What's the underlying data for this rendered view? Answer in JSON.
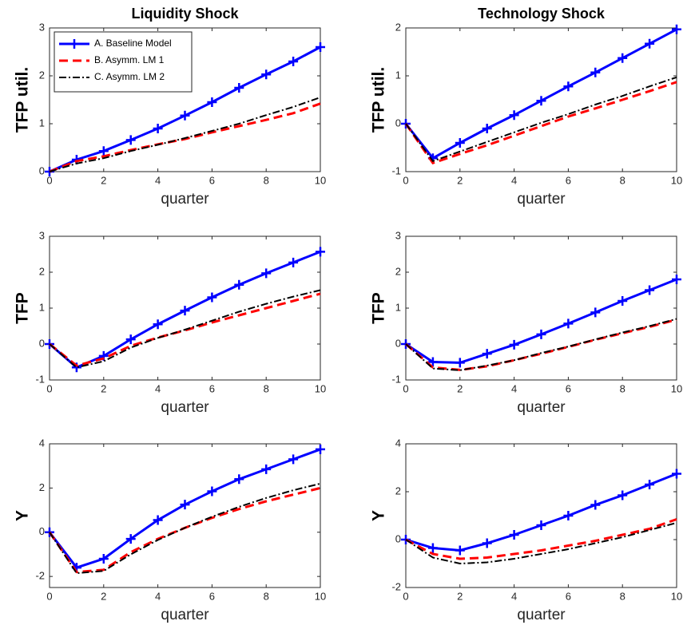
{
  "chart_data": [
    {
      "type": "line",
      "title": "Liquidity Shock",
      "xlabel": "quarter",
      "ylabel": "TFP util.",
      "x": [
        0,
        1,
        2,
        3,
        4,
        5,
        6,
        7,
        8,
        9,
        10
      ],
      "xlim": [
        0,
        10
      ],
      "xticks": [
        0,
        2,
        4,
        6,
        8,
        10
      ],
      "ylim": [
        0,
        3
      ],
      "yticks": [
        0,
        1,
        2,
        3
      ],
      "legend": "upper left",
      "series": [
        {
          "name": "A. Baseline Model",
          "color": "#0000ff",
          "line_style": "solid",
          "marker": "+",
          "values": [
            0,
            0.25,
            0.43,
            0.66,
            0.9,
            1.17,
            1.45,
            1.75,
            2.03,
            2.3,
            2.6
          ]
        },
        {
          "name": "B. Asymm. LM 1",
          "color": "#ff0000",
          "line_style": "dashed",
          "values": [
            0,
            0.22,
            0.32,
            0.45,
            0.57,
            0.68,
            0.82,
            0.95,
            1.08,
            1.22,
            1.42
          ]
        },
        {
          "name": "C. Asymm. LM 2",
          "color": "#000000",
          "line_style": "dashdot",
          "values": [
            0,
            0.17,
            0.28,
            0.43,
            0.56,
            0.7,
            0.85,
            1.0,
            1.18,
            1.35,
            1.55
          ]
        }
      ]
    },
    {
      "type": "line",
      "title": "Technology Shock",
      "xlabel": "quarter",
      "ylabel": "TFP util.",
      "x": [
        0,
        1,
        2,
        3,
        4,
        5,
        6,
        7,
        8,
        9,
        10
      ],
      "xlim": [
        0,
        10
      ],
      "xticks": [
        0,
        2,
        4,
        6,
        8,
        10
      ],
      "ylim": [
        -1,
        2
      ],
      "yticks": [
        -1,
        0,
        1,
        2
      ],
      "series": [
        {
          "color": "#0000ff",
          "line_style": "solid",
          "marker": "+",
          "values": [
            0,
            -0.72,
            -0.4,
            -0.1,
            0.18,
            0.48,
            0.78,
            1.07,
            1.37,
            1.67,
            1.97
          ]
        },
        {
          "color": "#ff0000",
          "line_style": "dashed",
          "values": [
            0,
            -0.82,
            -0.63,
            -0.45,
            -0.25,
            -0.05,
            0.15,
            0.32,
            0.5,
            0.68,
            0.87
          ]
        },
        {
          "color": "#000000",
          "line_style": "dashdot",
          "values": [
            0,
            -0.78,
            -0.58,
            -0.38,
            -0.18,
            0.02,
            0.2,
            0.4,
            0.58,
            0.78,
            0.97
          ]
        }
      ]
    },
    {
      "type": "line",
      "xlabel": "quarter",
      "ylabel": "TFP",
      "x": [
        0,
        1,
        2,
        3,
        4,
        5,
        6,
        7,
        8,
        9,
        10
      ],
      "xlim": [
        0,
        10
      ],
      "xticks": [
        0,
        2,
        4,
        6,
        8,
        10
      ],
      "ylim": [
        -1,
        3
      ],
      "yticks": [
        -1,
        0,
        1,
        2,
        3
      ],
      "series": [
        {
          "color": "#0000ff",
          "line_style": "solid",
          "marker": "+",
          "values": [
            0,
            -0.65,
            -0.33,
            0.13,
            0.55,
            0.93,
            1.3,
            1.65,
            1.97,
            2.27,
            2.57
          ]
        },
        {
          "color": "#ff0000",
          "line_style": "dashed",
          "values": [
            0,
            -0.6,
            -0.4,
            -0.05,
            0.18,
            0.38,
            0.6,
            0.8,
            1.0,
            1.2,
            1.4
          ]
        },
        {
          "color": "#000000",
          "line_style": "dashdot",
          "values": [
            0,
            -0.65,
            -0.48,
            -0.1,
            0.17,
            0.4,
            0.65,
            0.9,
            1.12,
            1.32,
            1.5
          ]
        }
      ]
    },
    {
      "type": "line",
      "xlabel": "quarter",
      "ylabel": "TFP",
      "x": [
        0,
        1,
        2,
        3,
        4,
        5,
        6,
        7,
        8,
        9,
        10
      ],
      "xlim": [
        0,
        10
      ],
      "xticks": [
        0,
        2,
        4,
        6,
        8,
        10
      ],
      "ylim": [
        -1,
        3
      ],
      "yticks": [
        -1,
        0,
        1,
        2,
        3
      ],
      "series": [
        {
          "color": "#0000ff",
          "line_style": "solid",
          "marker": "+",
          "values": [
            0,
            -0.5,
            -0.52,
            -0.27,
            -0.02,
            0.27,
            0.57,
            0.88,
            1.2,
            1.5,
            1.8
          ]
        },
        {
          "color": "#ff0000",
          "line_style": "dashed",
          "values": [
            0,
            -0.65,
            -0.72,
            -0.62,
            -0.45,
            -0.27,
            -0.08,
            0.12,
            0.3,
            0.48,
            0.68
          ]
        },
        {
          "color": "#000000",
          "line_style": "dashdot",
          "values": [
            0,
            -0.68,
            -0.73,
            -0.6,
            -0.45,
            -0.25,
            -0.07,
            0.13,
            0.32,
            0.5,
            0.7
          ]
        }
      ]
    },
    {
      "type": "line",
      "xlabel": "quarter",
      "ylabel": "Y",
      "x": [
        0,
        1,
        2,
        3,
        4,
        5,
        6,
        7,
        8,
        9,
        10
      ],
      "xlim": [
        0,
        10
      ],
      "xticks": [
        0,
        2,
        4,
        6,
        8,
        10
      ],
      "ylim": [
        -2.5,
        4
      ],
      "yticks": [
        -2,
        0,
        2,
        4
      ],
      "series": [
        {
          "color": "#0000ff",
          "line_style": "solid",
          "marker": "+",
          "values": [
            0,
            -1.6,
            -1.2,
            -0.3,
            0.55,
            1.25,
            1.85,
            2.4,
            2.85,
            3.3,
            3.75
          ]
        },
        {
          "color": "#ff0000",
          "line_style": "dashed",
          "values": [
            0,
            -1.8,
            -1.7,
            -0.9,
            -0.3,
            0.2,
            0.65,
            1.05,
            1.4,
            1.7,
            2.0
          ]
        },
        {
          "color": "#000000",
          "line_style": "dashdot",
          "values": [
            0,
            -1.85,
            -1.75,
            -1.0,
            -0.35,
            0.2,
            0.7,
            1.15,
            1.55,
            1.9,
            2.2
          ]
        }
      ]
    },
    {
      "type": "line",
      "xlabel": "quarter",
      "ylabel": "Y",
      "x": [
        0,
        1,
        2,
        3,
        4,
        5,
        6,
        7,
        8,
        9,
        10
      ],
      "xlim": [
        0,
        10
      ],
      "xticks": [
        0,
        2,
        4,
        6,
        8,
        10
      ],
      "ylim": [
        -2,
        4
      ],
      "yticks": [
        -2,
        0,
        2,
        4
      ],
      "series": [
        {
          "color": "#0000ff",
          "line_style": "solid",
          "marker": "+",
          "values": [
            0,
            -0.35,
            -0.45,
            -0.15,
            0.2,
            0.6,
            1.0,
            1.45,
            1.85,
            2.3,
            2.75
          ]
        },
        {
          "color": "#ff0000",
          "line_style": "dashed",
          "values": [
            0,
            -0.6,
            -0.8,
            -0.75,
            -0.6,
            -0.45,
            -0.25,
            -0.05,
            0.2,
            0.45,
            0.85
          ]
        },
        {
          "color": "#000000",
          "line_style": "dashdot",
          "values": [
            0,
            -0.75,
            -1.0,
            -0.95,
            -0.8,
            -0.6,
            -0.4,
            -0.15,
            0.1,
            0.4,
            0.7
          ]
        }
      ]
    }
  ]
}
